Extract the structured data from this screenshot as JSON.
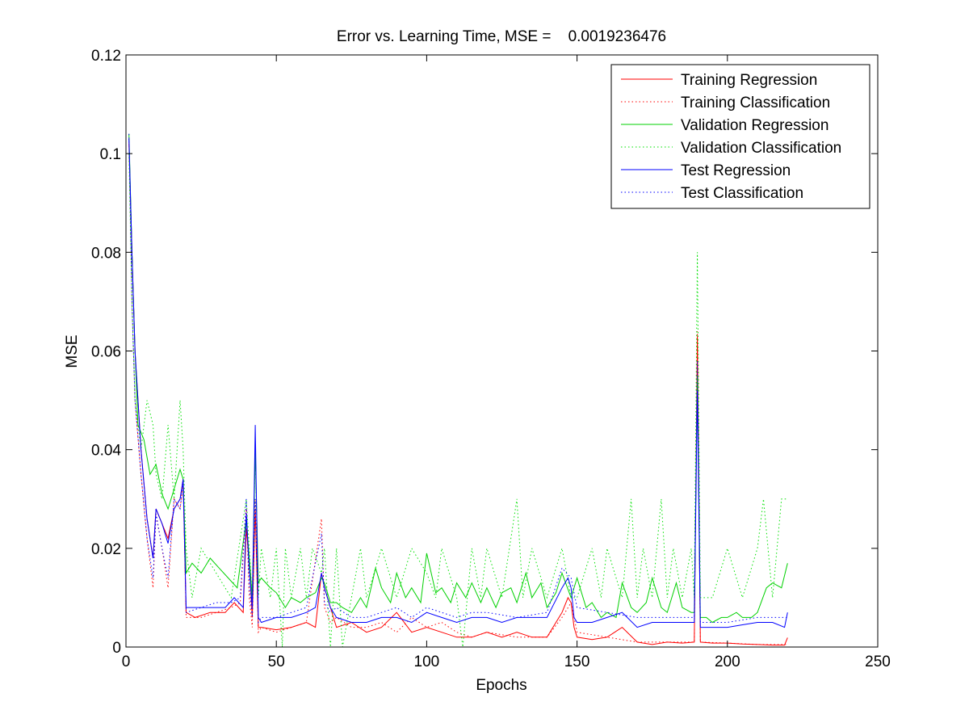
{
  "chart_data": {
    "type": "line",
    "title": "Error vs. Learning Time, MSE =    0.0019236476",
    "xlabel": "Epochs",
    "ylabel": "MSE",
    "xlim": [
      0,
      250
    ],
    "ylim": [
      0,
      0.12
    ],
    "xticks": [
      0,
      50,
      100,
      150,
      200,
      250
    ],
    "xtick_labels": [
      "0",
      "50",
      "100",
      "150",
      "200",
      "250"
    ],
    "yticks": [
      0,
      0.02,
      0.04,
      0.06,
      0.08,
      0.1,
      0.12
    ],
    "ytick_labels": [
      "0",
      "0.02",
      "0.04",
      "0.06",
      "0.08",
      "0.1",
      "0.12"
    ],
    "grid": false,
    "legend_position": "top-right",
    "series": [
      {
        "name": "Training Regression",
        "color": "#ff0000",
        "style": "solid",
        "x": [
          1,
          2,
          3,
          5,
          7,
          9,
          10,
          12,
          14,
          16,
          18,
          19,
          20,
          23,
          28,
          33,
          36,
          39,
          40,
          41,
          42,
          43,
          44,
          45,
          50,
          55,
          60,
          63,
          65,
          66,
          70,
          75,
          80,
          85,
          90,
          95,
          100,
          105,
          110,
          115,
          120,
          125,
          130,
          135,
          140,
          145,
          147,
          148,
          149,
          150,
          155,
          160,
          165,
          170,
          175,
          180,
          185,
          189,
          190,
          191,
          195,
          200,
          205,
          210,
          215,
          219,
          220
        ],
        "y": [
          0.102,
          0.08,
          0.06,
          0.04,
          0.026,
          0.018,
          0.028,
          0.025,
          0.022,
          0.028,
          0.03,
          0.034,
          0.007,
          0.006,
          0.007,
          0.007,
          0.009,
          0.007,
          0.024,
          0.017,
          0.006,
          0.028,
          0.004,
          0.004,
          0.0035,
          0.004,
          0.005,
          0.004,
          0.015,
          0.012,
          0.004,
          0.005,
          0.003,
          0.004,
          0.007,
          0.003,
          0.004,
          0.003,
          0.002,
          0.002,
          0.003,
          0.002,
          0.003,
          0.002,
          0.002,
          0.007,
          0.01,
          0.009,
          0.004,
          0.002,
          0.0015,
          0.002,
          0.004,
          0.001,
          0.0005,
          0.001,
          0.0008,
          0.001,
          0.063,
          0.001,
          0.0008,
          0.0008,
          0.0006,
          0.0005,
          0.0004,
          0.0004,
          0.0019
        ]
      },
      {
        "name": "Training Classification",
        "color": "#ff0000",
        "style": "dotted",
        "x": [
          1,
          2,
          3,
          5,
          7,
          9,
          10,
          12,
          14,
          16,
          18,
          19,
          20,
          25,
          30,
          35,
          38,
          40,
          41,
          42,
          43,
          44,
          45,
          50,
          55,
          60,
          65,
          66,
          68,
          70,
          75,
          80,
          85,
          90,
          95,
          100,
          105,
          110,
          115,
          120,
          130,
          140,
          145,
          148,
          150,
          160,
          170,
          180,
          189,
          190,
          191,
          200,
          210,
          220
        ],
        "y": [
          0.103,
          0.07,
          0.05,
          0.035,
          0.022,
          0.012,
          0.027,
          0.02,
          0.012,
          0.03,
          0.028,
          0.033,
          0.006,
          0.006,
          0.007,
          0.008,
          0.009,
          0.028,
          0.01,
          0.004,
          0.03,
          0.003,
          0.004,
          0.003,
          0.004,
          0.005,
          0.026,
          0.008,
          0.005,
          0.006,
          0.004,
          0.004,
          0.005,
          0.003,
          0.006,
          0.004,
          0.005,
          0.003,
          0.002,
          0.003,
          0.002,
          0.002,
          0.006,
          0.009,
          0.003,
          0.002,
          0.001,
          0.001,
          0.001,
          0.064,
          0.001,
          0.0008,
          0.0005,
          0.0005
        ]
      },
      {
        "name": "Validation Regression",
        "color": "#00d000",
        "style": "solid",
        "x": [
          1,
          2,
          3,
          4,
          6,
          8,
          10,
          12,
          14,
          16,
          18,
          19,
          20,
          22,
          25,
          28,
          31,
          34,
          37,
          40,
          41,
          42,
          43,
          44,
          45,
          48,
          50,
          53,
          55,
          58,
          60,
          63,
          65,
          66,
          68,
          70,
          72,
          75,
          78,
          80,
          83,
          85,
          88,
          90,
          93,
          95,
          98,
          100,
          103,
          105,
          108,
          110,
          113,
          115,
          118,
          120,
          123,
          125,
          128,
          130,
          133,
          135,
          138,
          140,
          143,
          145,
          148,
          150,
          153,
          155,
          158,
          160,
          163,
          165,
          168,
          170,
          173,
          175,
          178,
          180,
          183,
          185,
          188,
          189,
          190,
          191,
          193,
          195,
          198,
          200,
          203,
          205,
          208,
          210,
          213,
          215,
          218,
          220
        ],
        "y": [
          0.104,
          0.08,
          0.06,
          0.045,
          0.042,
          0.035,
          0.037,
          0.031,
          0.028,
          0.032,
          0.036,
          0.034,
          0.015,
          0.017,
          0.015,
          0.018,
          0.016,
          0.014,
          0.012,
          0.026,
          0.018,
          0.01,
          0.04,
          0.013,
          0.014,
          0.012,
          0.011,
          0.008,
          0.01,
          0.009,
          0.01,
          0.011,
          0.014,
          0.013,
          0.009,
          0.009,
          0.008,
          0.007,
          0.01,
          0.008,
          0.016,
          0.012,
          0.009,
          0.015,
          0.01,
          0.012,
          0.009,
          0.019,
          0.011,
          0.012,
          0.009,
          0.013,
          0.01,
          0.013,
          0.009,
          0.012,
          0.008,
          0.011,
          0.012,
          0.009,
          0.015,
          0.01,
          0.013,
          0.008,
          0.011,
          0.015,
          0.01,
          0.014,
          0.008,
          0.009,
          0.006,
          0.007,
          0.006,
          0.013,
          0.008,
          0.007,
          0.009,
          0.014,
          0.008,
          0.007,
          0.013,
          0.008,
          0.007,
          0.007,
          0.055,
          0.006,
          0.006,
          0.005,
          0.006,
          0.006,
          0.007,
          0.006,
          0.006,
          0.007,
          0.012,
          0.013,
          0.012,
          0.017
        ]
      },
      {
        "name": "Validation Classification",
        "color": "#00e000",
        "style": "dotted",
        "x": [
          1,
          2,
          3,
          5,
          7,
          9,
          10,
          12,
          14,
          16,
          18,
          19,
          20,
          22,
          25,
          30,
          35,
          40,
          41,
          42,
          43,
          44,
          45,
          48,
          50,
          52,
          53,
          55,
          58,
          60,
          62,
          65,
          66,
          68,
          70,
          72,
          75,
          78,
          80,
          85,
          90,
          95,
          100,
          103,
          105,
          110,
          112,
          115,
          118,
          120,
          125,
          130,
          132,
          135,
          140,
          145,
          148,
          150,
          155,
          158,
          160,
          165,
          168,
          170,
          172,
          175,
          178,
          180,
          182,
          185,
          188,
          189,
          190,
          191,
          195,
          200,
          205,
          210,
          212,
          215,
          218,
          220
        ],
        "y": [
          0.1,
          0.07,
          0.05,
          0.04,
          0.05,
          0.045,
          0.035,
          0.03,
          0.045,
          0.03,
          0.05,
          0.04,
          0.02,
          0.01,
          0.02,
          0.015,
          0.01,
          0.03,
          0.02,
          0.01,
          0.04,
          0.01,
          0.02,
          0.01,
          0.02,
          0.0,
          0.02,
          0.01,
          0.02,
          0.01,
          0.02,
          0.015,
          0.02,
          0.0,
          0.02,
          0.0,
          0.01,
          0.02,
          0.01,
          0.02,
          0.01,
          0.02,
          0.015,
          0.01,
          0.02,
          0.01,
          0.0,
          0.02,
          0.01,
          0.02,
          0.01,
          0.03,
          0.01,
          0.02,
          0.01,
          0.02,
          0.01,
          0.01,
          0.02,
          0.01,
          0.02,
          0.01,
          0.03,
          0.01,
          0.02,
          0.01,
          0.03,
          0.01,
          0.02,
          0.01,
          0.02,
          0.01,
          0.08,
          0.01,
          0.01,
          0.02,
          0.01,
          0.02,
          0.03,
          0.01,
          0.03,
          0.03
        ]
      },
      {
        "name": "Test Regression",
        "color": "#0000ff",
        "style": "solid",
        "x": [
          1,
          2,
          3,
          5,
          7,
          9,
          10,
          12,
          14,
          16,
          18,
          19,
          20,
          23,
          28,
          33,
          36,
          39,
          40,
          41,
          42,
          43,
          44,
          45,
          50,
          55,
          60,
          63,
          65,
          66,
          68,
          70,
          75,
          80,
          85,
          90,
          95,
          100,
          105,
          110,
          115,
          120,
          125,
          130,
          135,
          140,
          145,
          147,
          148,
          149,
          150,
          155,
          160,
          165,
          170,
          175,
          180,
          185,
          189,
          190,
          191,
          195,
          200,
          205,
          210,
          215,
          219,
          220
        ],
        "y": [
          0.103,
          0.08,
          0.06,
          0.04,
          0.026,
          0.018,
          0.028,
          0.025,
          0.021,
          0.028,
          0.03,
          0.034,
          0.008,
          0.008,
          0.008,
          0.008,
          0.01,
          0.008,
          0.027,
          0.016,
          0.008,
          0.045,
          0.006,
          0.005,
          0.006,
          0.006,
          0.007,
          0.008,
          0.015,
          0.012,
          0.008,
          0.006,
          0.005,
          0.005,
          0.006,
          0.006,
          0.005,
          0.007,
          0.006,
          0.005,
          0.006,
          0.006,
          0.005,
          0.006,
          0.006,
          0.006,
          0.012,
          0.014,
          0.012,
          0.006,
          0.005,
          0.005,
          0.006,
          0.007,
          0.004,
          0.005,
          0.005,
          0.005,
          0.005,
          0.052,
          0.004,
          0.004,
          0.004,
          0.0045,
          0.005,
          0.005,
          0.004,
          0.007
        ]
      },
      {
        "name": "Test Classification",
        "color": "#0000ff",
        "style": "dotted",
        "x": [
          1,
          2,
          3,
          5,
          7,
          9,
          10,
          12,
          14,
          16,
          18,
          19,
          20,
          25,
          30,
          35,
          38,
          40,
          41,
          42,
          43,
          44,
          45,
          50,
          55,
          60,
          65,
          66,
          68,
          70,
          75,
          80,
          85,
          90,
          95,
          100,
          105,
          110,
          115,
          120,
          130,
          140,
          145,
          148,
          150,
          160,
          170,
          180,
          189,
          190,
          191,
          200,
          210,
          220
        ],
        "y": [
          0.104,
          0.07,
          0.05,
          0.035,
          0.022,
          0.014,
          0.027,
          0.02,
          0.014,
          0.03,
          0.028,
          0.033,
          0.007,
          0.008,
          0.009,
          0.009,
          0.01,
          0.03,
          0.012,
          0.006,
          0.03,
          0.005,
          0.006,
          0.006,
          0.007,
          0.008,
          0.023,
          0.009,
          0.007,
          0.008,
          0.006,
          0.006,
          0.007,
          0.008,
          0.006,
          0.008,
          0.007,
          0.006,
          0.007,
          0.007,
          0.006,
          0.007,
          0.016,
          0.014,
          0.008,
          0.007,
          0.006,
          0.006,
          0.006,
          0.058,
          0.005,
          0.005,
          0.006,
          0.006
        ]
      }
    ]
  }
}
